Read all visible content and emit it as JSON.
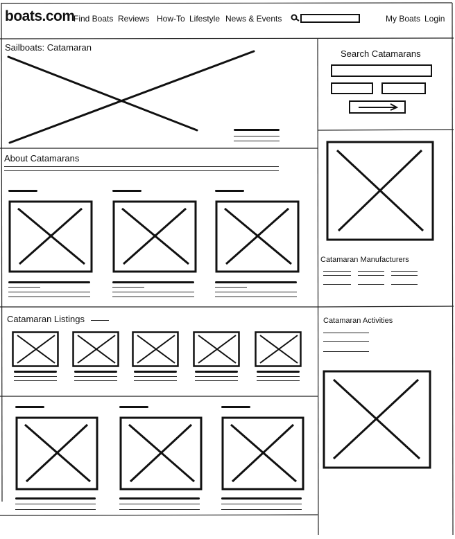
{
  "header": {
    "logo": "boats.com",
    "nav": [
      "Find Boats",
      "Reviews",
      "How-To",
      "Lifestyle",
      "News & Events"
    ],
    "search_icon": "search-icon",
    "right": [
      "My Boats",
      "Login"
    ]
  },
  "hero": {
    "title": "Sailboats: Catamaran"
  },
  "about": {
    "title": "About Catamarans"
  },
  "listings": {
    "title": "Catamaran Listings"
  },
  "sidebar": {
    "search_title": "Search Catamarans",
    "submit_icon": "arrow-right-icon",
    "manufacturers_title": "Catamaran Manufacturers",
    "activities_title": "Catamaran Activities"
  },
  "colors": {
    "ink": "#111111",
    "background": "#ffffff"
  }
}
